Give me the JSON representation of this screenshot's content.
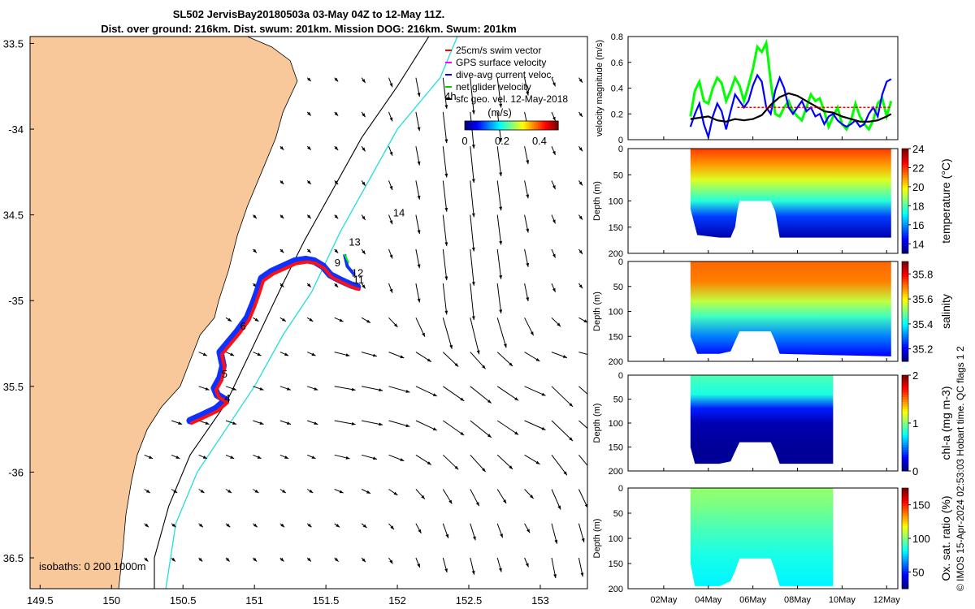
{
  "title_line1": "SL502 JervisBay20180503a 03-May 04Z to 12-May 11Z.",
  "title_line2": "Dist. over ground: 216km. Dist. swum: 201km. Mission DOG: 216km. Swum: 201km",
  "copyright": "© IMOS 15-Apr-2024 02:53:03 Hobart time. QC flags 1  2",
  "chart_data": [
    {
      "type": "map",
      "lon_ticks": [
        "149.5",
        "150",
        "150.5",
        "151",
        "151.5",
        "152",
        "152.5",
        "153"
      ],
      "lat_ticks": [
        "33.5",
        "-34",
        "34.5",
        "-35",
        "35.5",
        "-36",
        "36.5"
      ],
      "lon_range": [
        149.43,
        153.33
      ],
      "lat_range": [
        -36.68,
        -33.46
      ],
      "legend": [
        "25cm/s swim vector",
        "GPS surface velocity",
        "dive-avg current veloc.",
        "net glider velocity",
        "sfc geo. vel. 12-May-2018"
      ],
      "colorbar": {
        "label": "(m/s)",
        "ticks": [
          "0",
          "0.2",
          "0.4"
        ],
        "range": [
          0,
          0.5
        ]
      },
      "isobaths_label": "isobaths: 0   200  1000m",
      "day_labels": [
        {
          "text": "4",
          "lon": 150.79,
          "lat": -35.59
        },
        {
          "text": "5",
          "lon": 150.77,
          "lat": -35.45
        },
        {
          "text": "6",
          "lon": 150.9,
          "lat": -35.17
        },
        {
          "text": "9",
          "lon": 151.56,
          "lat": -34.8
        },
        {
          "text": "12",
          "lon": 151.68,
          "lat": -34.86
        },
        {
          "text": "11",
          "lon": 151.69,
          "lat": -34.9
        },
        {
          "text": "13",
          "lon": 151.66,
          "lat": -34.68
        },
        {
          "text": "14",
          "lon": 151.97,
          "lat": -34.51
        },
        {
          "text": "4h",
          "lon": 152.33,
          "lat": -33.83
        }
      ],
      "track": [
        [
          150.55,
          -35.7
        ],
        [
          150.63,
          -35.67
        ],
        [
          150.73,
          -35.63
        ],
        [
          150.8,
          -35.58
        ],
        [
          150.74,
          -35.55
        ],
        [
          150.72,
          -35.51
        ],
        [
          150.76,
          -35.45
        ],
        [
          150.78,
          -35.38
        ],
        [
          150.76,
          -35.3
        ],
        [
          150.8,
          -35.26
        ],
        [
          150.88,
          -35.18
        ],
        [
          150.95,
          -35.1
        ],
        [
          150.99,
          -35.02
        ],
        [
          151.02,
          -34.95
        ],
        [
          151.05,
          -34.87
        ],
        [
          151.12,
          -34.83
        ],
        [
          151.2,
          -34.8
        ],
        [
          151.28,
          -34.77
        ],
        [
          151.36,
          -34.76
        ],
        [
          151.42,
          -34.77
        ],
        [
          151.48,
          -34.8
        ],
        [
          151.53,
          -34.85
        ],
        [
          151.6,
          -34.88
        ],
        [
          151.68,
          -34.91
        ],
        [
          151.72,
          -34.92
        ]
      ]
    },
    {
      "type": "line",
      "ylabel": "velocity magnitude (m/s)",
      "ylim": [
        0,
        0.8
      ],
      "yticks": [
        "0",
        "0.2",
        "0.4",
        "0.6",
        "0.8"
      ],
      "series": [
        {
          "color": "#00ff00",
          "x": [
            3.2,
            3.4,
            3.6,
            3.8,
            4.0,
            4.2,
            4.4,
            4.6,
            4.8,
            5.0,
            5.2,
            5.4,
            5.6,
            5.8,
            6.0,
            6.2,
            6.4,
            6.6,
            6.8,
            7.0,
            7.2,
            7.4,
            7.6,
            7.8,
            8.0,
            8.2,
            8.4,
            8.6,
            8.8,
            9.0,
            9.2,
            9.4,
            9.6,
            9.8,
            10.0,
            10.2,
            10.4,
            10.6,
            10.8,
            11.0,
            11.2,
            11.4,
            11.6,
            11.8,
            12.0,
            12.2
          ],
          "values": [
            0.18,
            0.38,
            0.45,
            0.3,
            0.28,
            0.4,
            0.48,
            0.44,
            0.3,
            0.38,
            0.48,
            0.42,
            0.3,
            0.42,
            0.55,
            0.72,
            0.68,
            0.75,
            0.45,
            0.2,
            0.18,
            0.25,
            0.3,
            0.22,
            0.18,
            0.15,
            0.25,
            0.35,
            0.3,
            0.32,
            0.22,
            0.1,
            0.18,
            0.25,
            0.12,
            0.08,
            0.15,
            0.28,
            0.18,
            0.12,
            0.08,
            0.15,
            0.28,
            0.32,
            0.18,
            0.3
          ]
        },
        {
          "color": "#0000ff",
          "x": [
            3.2,
            3.4,
            3.6,
            3.8,
            4.0,
            4.2,
            4.4,
            4.6,
            4.8,
            5.0,
            5.2,
            5.4,
            5.6,
            5.8,
            6.0,
            6.2,
            6.4,
            6.6,
            6.8,
            7.0,
            7.2,
            7.4,
            7.6,
            7.8,
            8.0,
            8.2,
            8.4,
            8.6,
            8.8,
            9.0,
            9.2,
            9.4,
            9.6,
            9.8,
            10.0,
            10.2,
            10.4,
            10.6,
            10.8,
            11.0,
            11.2,
            11.4,
            11.6,
            11.8,
            12.0,
            12.2
          ],
          "values": [
            0.1,
            0.2,
            0.28,
            0.12,
            0.02,
            0.18,
            0.28,
            0.22,
            0.08,
            0.22,
            0.35,
            0.3,
            0.25,
            0.3,
            0.42,
            0.5,
            0.45,
            0.25,
            0.2,
            0.38,
            0.48,
            0.4,
            0.25,
            0.2,
            0.25,
            0.3,
            0.22,
            0.25,
            0.18,
            0.2,
            0.12,
            0.18,
            0.2,
            0.15,
            0.12,
            0.1,
            0.12,
            0.15,
            0.1,
            0.12,
            0.2,
            0.25,
            0.18,
            0.35,
            0.45,
            0.47
          ]
        },
        {
          "color": "#000000",
          "x": [
            3.2,
            3.6,
            4.0,
            4.4,
            4.8,
            5.2,
            5.6,
            6.0,
            6.4,
            6.8,
            7.2,
            7.6,
            8.0,
            8.4,
            8.8,
            9.2,
            9.6,
            10.0,
            10.4,
            10.8,
            11.2,
            11.6,
            12.0,
            12.2
          ],
          "values": [
            0.16,
            0.17,
            0.18,
            0.15,
            0.14,
            0.16,
            0.15,
            0.16,
            0.19,
            0.27,
            0.33,
            0.36,
            0.34,
            0.3,
            0.26,
            0.22,
            0.21,
            0.18,
            0.16,
            0.14,
            0.14,
            0.15,
            0.18,
            0.2
          ]
        },
        {
          "color": "#ff0000",
          "dashed": true,
          "x": [
            5.3,
            12.2
          ],
          "values": [
            0.25,
            0.25
          ]
        }
      ]
    },
    {
      "type": "heatmap",
      "ylabel": "Depth (m)",
      "clabel": "temperature (°C)",
      "cticks": [
        "14",
        "16",
        "18",
        "20",
        "22",
        "24"
      ],
      "crange": [
        13,
        24
      ],
      "ylim": [
        0,
        200
      ],
      "yticks": [
        "0",
        "50",
        "100",
        "150",
        "200"
      ],
      "x_range": [
        3.2,
        12.2
      ],
      "bottom_profile": [
        [
          3.2,
          115
        ],
        [
          3.5,
          165
        ],
        [
          4.5,
          170
        ],
        [
          5.0,
          170
        ],
        [
          5.2,
          150
        ],
        [
          5.3,
          120
        ],
        [
          5.4,
          100
        ],
        [
          6.8,
          100
        ],
        [
          7.0,
          120
        ],
        [
          7.2,
          170
        ],
        [
          12.2,
          170
        ]
      ],
      "colored_layers": [
        {
          "depth": 0,
          "value": 22
        },
        {
          "depth": 30,
          "value": 21
        },
        {
          "depth": 60,
          "value": 19.5
        },
        {
          "depth": 100,
          "value": 17.5
        },
        {
          "depth": 130,
          "value": 15
        },
        {
          "depth": 170,
          "value": 13.5
        }
      ]
    },
    {
      "type": "heatmap",
      "ylabel": "Depth (m)",
      "clabel": "salinity",
      "cticks": [
        "35.2",
        "35.4",
        "35.6",
        "35.8"
      ],
      "crange": [
        35.1,
        35.9
      ],
      "ylim": [
        0,
        200
      ],
      "yticks": [
        "0",
        "50",
        "100",
        "150",
        "200"
      ],
      "x_range": [
        3.2,
        12.2
      ],
      "bottom_profile": [
        [
          3.2,
          150
        ],
        [
          3.5,
          185
        ],
        [
          4.5,
          185
        ],
        [
          5.0,
          180
        ],
        [
          5.2,
          160
        ],
        [
          5.4,
          140
        ],
        [
          6.8,
          140
        ],
        [
          7.0,
          160
        ],
        [
          7.2,
          185
        ],
        [
          12.2,
          190
        ]
      ],
      "colored_layers": [
        {
          "depth": 0,
          "value": 35.72
        },
        {
          "depth": 40,
          "value": 35.7
        },
        {
          "depth": 80,
          "value": 35.55
        },
        {
          "depth": 110,
          "value": 35.45
        },
        {
          "depth": 150,
          "value": 35.3
        },
        {
          "depth": 190,
          "value": 35.2
        }
      ]
    },
    {
      "type": "heatmap",
      "ylabel": "Depth (m)",
      "clabel": "chl-a (mg m-3)",
      "cticks": [
        "0",
        "1",
        "2"
      ],
      "crange": [
        0,
        2
      ],
      "ylim": [
        0,
        200
      ],
      "yticks": [
        "0",
        "50",
        "100",
        "150",
        "200"
      ],
      "x_range": [
        3.2,
        9.6
      ],
      "bottom_profile": [
        [
          3.2,
          150
        ],
        [
          3.4,
          185
        ],
        [
          4.5,
          185
        ],
        [
          5.0,
          180
        ],
        [
          5.2,
          160
        ],
        [
          5.4,
          140
        ],
        [
          6.8,
          140
        ],
        [
          7.0,
          160
        ],
        [
          7.2,
          185
        ],
        [
          9.6,
          185
        ]
      ],
      "colored_layers": [
        {
          "depth": 0,
          "value": 0.9
        },
        {
          "depth": 40,
          "value": 0.8
        },
        {
          "depth": 70,
          "value": 0.3
        },
        {
          "depth": 100,
          "value": 0.1
        },
        {
          "depth": 150,
          "value": 0.05
        }
      ]
    },
    {
      "type": "heatmap",
      "ylabel": "Depth (m)",
      "clabel": "Ox. sat. ratio (%)",
      "cticks": [
        "50",
        "100",
        "150"
      ],
      "crange": [
        25,
        175
      ],
      "ylim": [
        0,
        200
      ],
      "yticks": [
        "0",
        "50",
        "100",
        "150",
        "200"
      ],
      "x_range": [
        3.2,
        9.6
      ],
      "xticks": [
        "02May",
        "04May",
        "06May",
        "08May",
        "10May",
        "12May"
      ],
      "xtick_values": [
        2,
        4,
        6,
        8,
        10,
        12
      ],
      "xlim": [
        0.4,
        12.5
      ],
      "bottom_profile": [
        [
          3.2,
          150
        ],
        [
          3.4,
          195
        ],
        [
          4.5,
          195
        ],
        [
          5.0,
          185
        ],
        [
          5.2,
          165
        ],
        [
          5.4,
          140
        ],
        [
          6.8,
          140
        ],
        [
          7.0,
          165
        ],
        [
          7.2,
          195
        ],
        [
          9.6,
          195
        ]
      ],
      "colored_layers": [
        {
          "depth": 0,
          "value": 103
        },
        {
          "depth": 30,
          "value": 100
        },
        {
          "depth": 80,
          "value": 92
        },
        {
          "depth": 130,
          "value": 85
        },
        {
          "depth": 190,
          "value": 80
        }
      ]
    }
  ]
}
